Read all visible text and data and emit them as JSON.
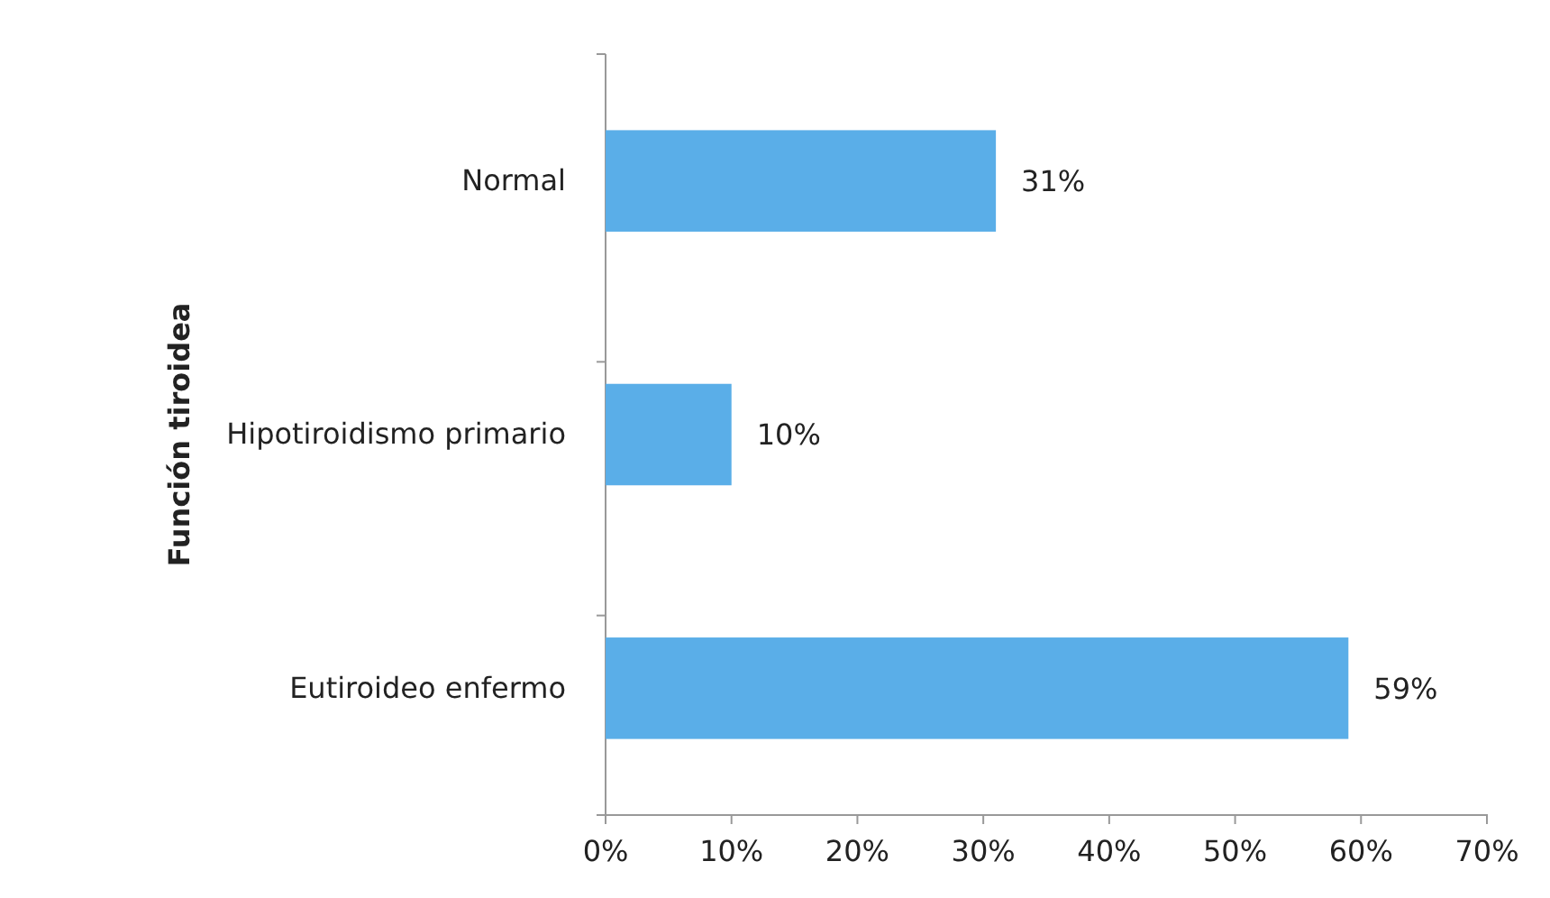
{
  "chart_data": {
    "type": "bar",
    "orientation": "horizontal",
    "ylabel": "Función tiroidea",
    "categories": [
      "Normal",
      "Hipotiroidismo primario",
      "Eutiroideo enfermo"
    ],
    "values": [
      31,
      10,
      59
    ],
    "color": "#5aaee8",
    "value_labels": [
      "31%",
      "10%",
      "59%"
    ],
    "xlim": [
      0,
      70
    ],
    "xticks": [
      {
        "value": 0,
        "label": "0%"
      },
      {
        "value": 10,
        "label": "10%"
      },
      {
        "value": 20,
        "label": "20%"
      },
      {
        "value": 30,
        "label": "30%"
      },
      {
        "value": 40,
        "label": "40%"
      },
      {
        "value": 50,
        "label": "50%"
      },
      {
        "value": 60,
        "label": "60%"
      },
      {
        "value": 70,
        "label": "70%"
      }
    ],
    "grid": false
  }
}
